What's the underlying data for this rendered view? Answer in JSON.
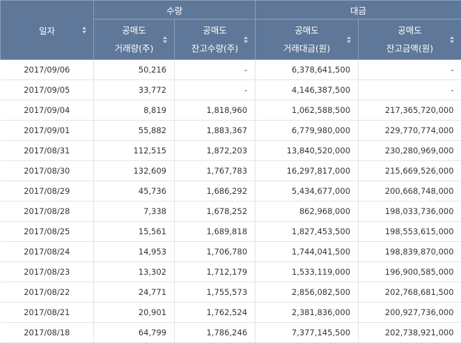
{
  "header": {
    "date_label": "일자",
    "group_volume": "수량",
    "group_amount": "대금",
    "columns": [
      {
        "line1": "공매도",
        "line2": "거래량(주)"
      },
      {
        "line1": "공매도",
        "line2": "잔고수량(주)"
      },
      {
        "line1": "공매도",
        "line2": "거래대금(원)"
      },
      {
        "line1": "공매도",
        "line2": "잔고금액(원)"
      }
    ]
  },
  "rows": [
    {
      "date": "2017/09/06",
      "vol": "50,216",
      "bal_qty": "-",
      "amt": "6,378,641,500",
      "bal_amt": "-"
    },
    {
      "date": "2017/09/05",
      "vol": "33,772",
      "bal_qty": "-",
      "amt": "4,146,387,500",
      "bal_amt": "-"
    },
    {
      "date": "2017/09/04",
      "vol": "8,819",
      "bal_qty": "1,818,960",
      "amt": "1,062,588,500",
      "bal_amt": "217,365,720,000"
    },
    {
      "date": "2017/09/01",
      "vol": "55,882",
      "bal_qty": "1,883,367",
      "amt": "6,779,980,000",
      "bal_amt": "229,770,774,000"
    },
    {
      "date": "2017/08/31",
      "vol": "112,515",
      "bal_qty": "1,872,203",
      "amt": "13,840,520,000",
      "bal_amt": "230,280,969,000"
    },
    {
      "date": "2017/08/30",
      "vol": "132,609",
      "bal_qty": "1,767,783",
      "amt": "16,297,817,000",
      "bal_amt": "215,669,526,000"
    },
    {
      "date": "2017/08/29",
      "vol": "45,736",
      "bal_qty": "1,686,292",
      "amt": "5,434,677,000",
      "bal_amt": "200,668,748,000"
    },
    {
      "date": "2017/08/28",
      "vol": "7,338",
      "bal_qty": "1,678,252",
      "amt": "862,968,000",
      "bal_amt": "198,033,736,000"
    },
    {
      "date": "2017/08/25",
      "vol": "15,561",
      "bal_qty": "1,689,818",
      "amt": "1,827,453,500",
      "bal_amt": "198,553,615,000"
    },
    {
      "date": "2017/08/24",
      "vol": "14,953",
      "bal_qty": "1,706,780",
      "amt": "1,744,041,500",
      "bal_amt": "198,839,870,000"
    },
    {
      "date": "2017/08/23",
      "vol": "13,302",
      "bal_qty": "1,712,179",
      "amt": "1,533,119,000",
      "bal_amt": "196,900,585,000"
    },
    {
      "date": "2017/08/22",
      "vol": "24,771",
      "bal_qty": "1,755,573",
      "amt": "2,856,082,500",
      "bal_amt": "202,768,681,500"
    },
    {
      "date": "2017/08/21",
      "vol": "20,901",
      "bal_qty": "1,762,524",
      "amt": "2,381,836,000",
      "bal_amt": "200,927,736,000"
    },
    {
      "date": "2017/08/18",
      "vol": "64,799",
      "bal_qty": "1,786,246",
      "amt": "7,377,145,500",
      "bal_amt": "202,738,921,000"
    }
  ],
  "icons": {
    "sort": "sort-icon"
  },
  "colors": {
    "header_bg": "#5f7899",
    "header_text": "#ffffff",
    "row_border": "#e1e4e8",
    "text": "#333333"
  }
}
